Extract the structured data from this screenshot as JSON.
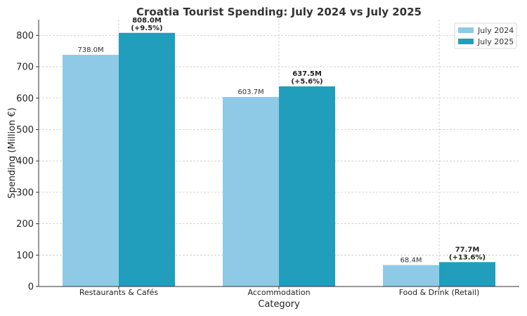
{
  "chart_data": {
    "type": "bar",
    "title": "Croatia Tourist Spending: July 2024 vs July 2025",
    "xlabel": "Category",
    "ylabel": "Spending (Million €)",
    "categories": [
      "Restaurants & Cafés",
      "Accommodation",
      "Food & Drink (Retail)"
    ],
    "series": [
      {
        "name": "July 2024",
        "values": [
          738.0,
          603.7,
          68.4
        ],
        "labels": [
          "738.0M",
          "603.7M",
          "68.4M"
        ],
        "color": "#8ecae6"
      },
      {
        "name": "July 2025",
        "values": [
          808.0,
          637.5,
          77.7
        ],
        "labels": [
          "808.0M",
          "637.5M",
          "77.7M"
        ],
        "changes": [
          "(+9.5%)",
          "(+5.6%)",
          "(+13.6%)"
        ],
        "color": "#219ebc"
      }
    ],
    "ylim": [
      0,
      850
    ],
    "yticks": [
      0,
      100,
      200,
      300,
      400,
      500,
      600,
      700,
      800
    ],
    "grid": true,
    "legend_position": "top-right"
  }
}
